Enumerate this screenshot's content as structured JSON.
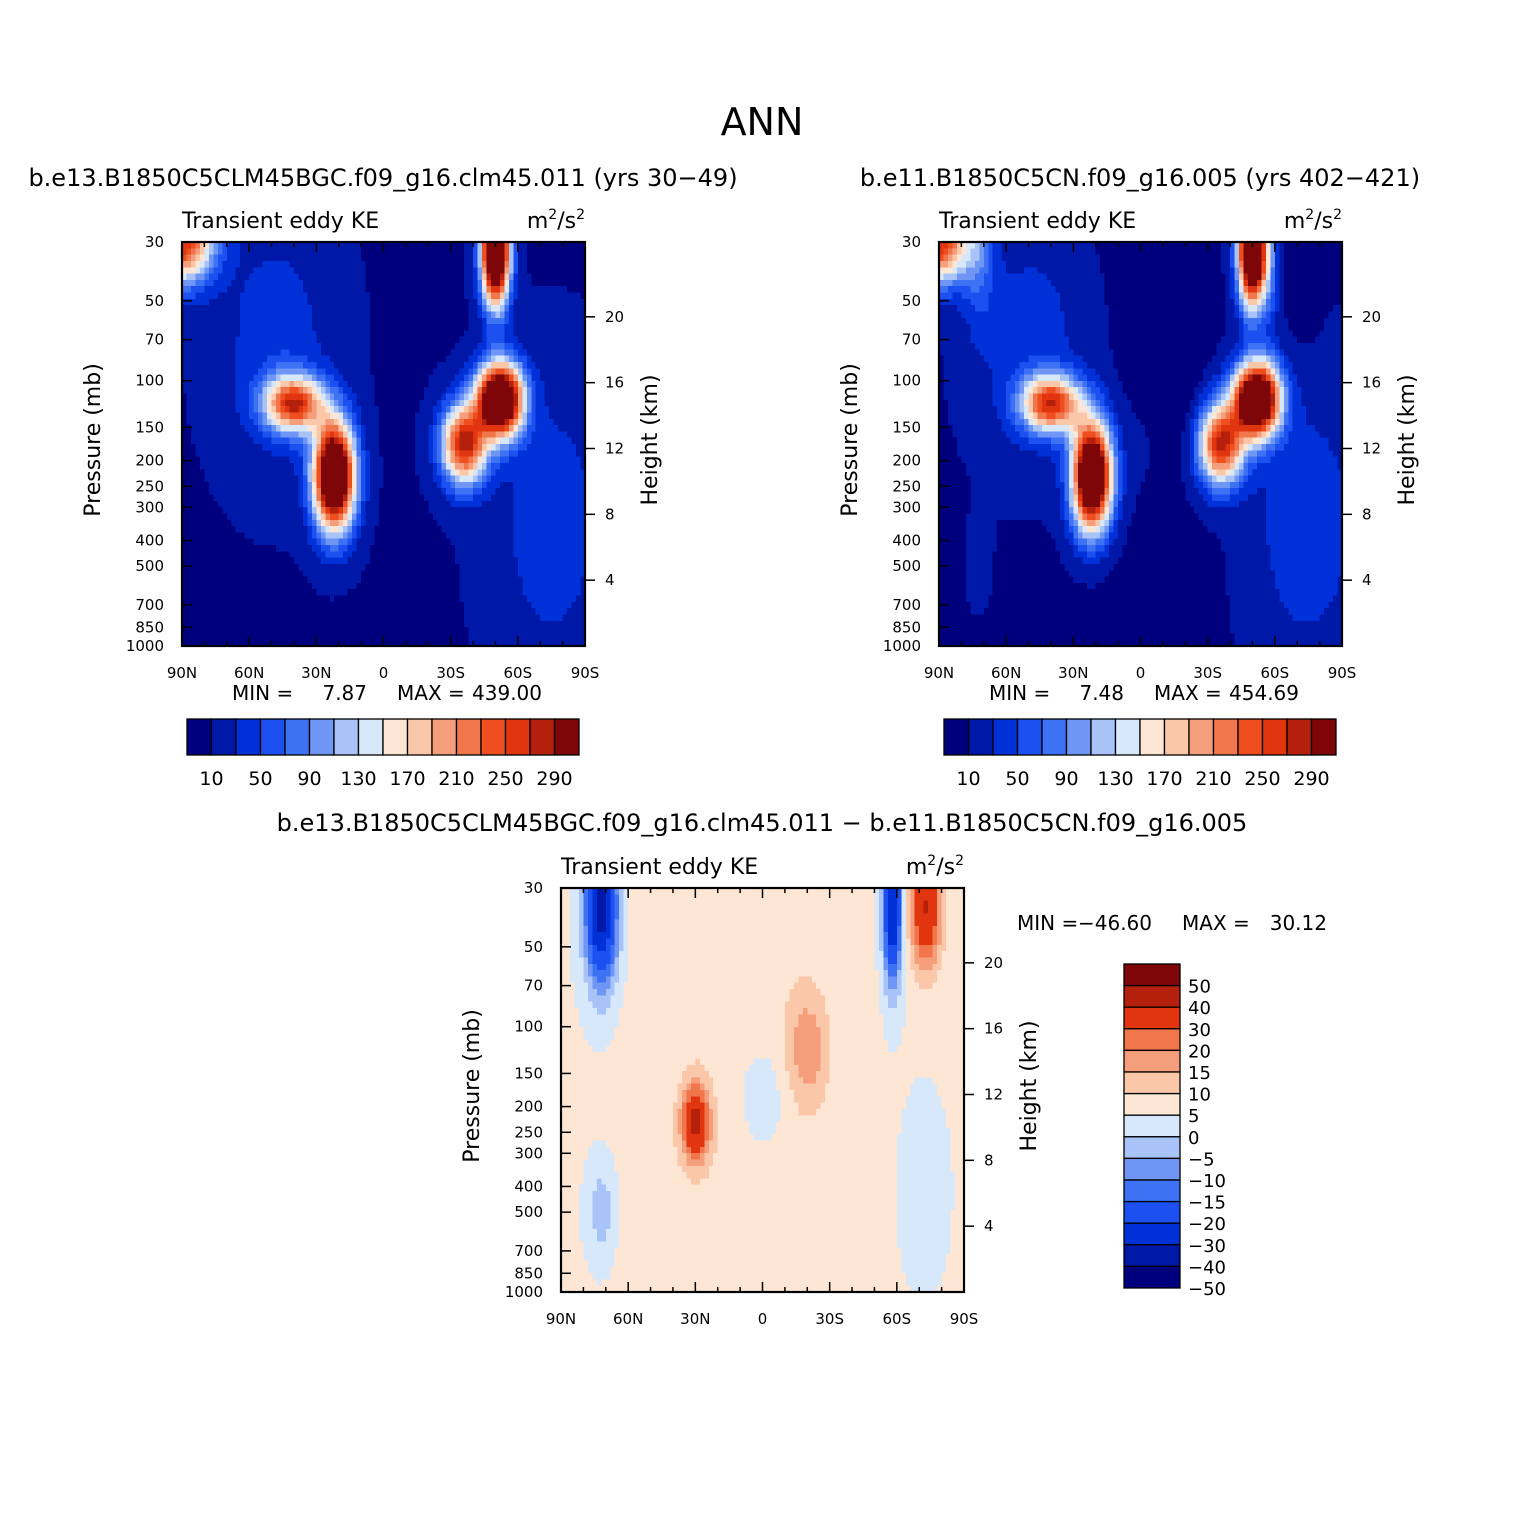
{
  "page_title": "ANN",
  "icons": {},
  "chart_data": [
    {
      "type": "heatmap",
      "id": "panel-a",
      "case_title": "b.e13.B1850C5CLM45BGC.f09_g16.clm45.011 (yrs 30−49)",
      "title": "Transient eddy KE",
      "units_base": "m",
      "units_exp1": "2",
      "units_sep": "/s",
      "units_exp2": "2",
      "ylabel": "Pressure (mb)",
      "y2label": "Height (km)",
      "x_ticks": [
        "90N",
        "60N",
        "30N",
        "0",
        "30S",
        "60S",
        "90S"
      ],
      "x_range": [
        90,
        -90
      ],
      "y_ticks": [
        "30",
        "50",
        "70",
        "100",
        "150",
        "200",
        "250",
        "300",
        "400",
        "500",
        "700",
        "850",
        "1000"
      ],
      "y_range_mb": [
        30,
        1000
      ],
      "y2_ticks": [
        "20",
        "16",
        "12",
        "8",
        "4"
      ],
      "min_label": "MIN =",
      "min_value": "7.87",
      "max_label": "MAX =",
      "max_value": "439.00",
      "min": 7.87,
      "max": 439.0,
      "colorbar": {
        "orientation": "horizontal",
        "colors": [
          "#00007f",
          "#0018a8",
          "#0030d8",
          "#1c50f0",
          "#3e72f4",
          "#7096f5",
          "#a7c3f8",
          "#d8e8fb",
          "#fde6d4",
          "#fbc7a9",
          "#f59e7c",
          "#f2764c",
          "#ef4e1e",
          "#e0350e",
          "#b4200b",
          "#7e0608"
        ],
        "labels": [
          "10",
          "50",
          "90",
          "130",
          "170",
          "210",
          "250",
          "290"
        ],
        "levels": [
          10,
          30,
          50,
          70,
          90,
          110,
          130,
          150,
          170,
          190,
          210,
          230,
          250,
          270,
          290
        ]
      }
    },
    {
      "type": "heatmap",
      "id": "panel-b",
      "case_title": "b.e11.B1850C5CN.f09_g16.005 (yrs 402−421)",
      "title": "Transient eddy KE",
      "units_base": "m",
      "units_exp1": "2",
      "units_sep": "/s",
      "units_exp2": "2",
      "ylabel": "Pressure (mb)",
      "y2label": "Height (km)",
      "x_ticks": [
        "90N",
        "60N",
        "30N",
        "0",
        "30S",
        "60S",
        "90S"
      ],
      "x_range": [
        90,
        -90
      ],
      "y_ticks": [
        "30",
        "50",
        "70",
        "100",
        "150",
        "200",
        "250",
        "300",
        "400",
        "500",
        "700",
        "850",
        "1000"
      ],
      "y_range_mb": [
        30,
        1000
      ],
      "y2_ticks": [
        "20",
        "16",
        "12",
        "8",
        "4"
      ],
      "min_label": "MIN =",
      "min_value": "7.48",
      "max_label": "MAX =",
      "max_value": "454.69",
      "min": 7.48,
      "max": 454.69,
      "colorbar": {
        "orientation": "horizontal",
        "colors": [
          "#00007f",
          "#0018a8",
          "#0030d8",
          "#1c50f0",
          "#3e72f4",
          "#7096f5",
          "#a7c3f8",
          "#d8e8fb",
          "#fde6d4",
          "#fbc7a9",
          "#f59e7c",
          "#f2764c",
          "#ef4e1e",
          "#e0350e",
          "#b4200b",
          "#7e0608"
        ],
        "labels": [
          "10",
          "50",
          "90",
          "130",
          "170",
          "210",
          "250",
          "290"
        ],
        "levels": [
          10,
          30,
          50,
          70,
          90,
          110,
          130,
          150,
          170,
          190,
          210,
          230,
          250,
          270,
          290
        ]
      }
    },
    {
      "type": "heatmap",
      "id": "panel-diff",
      "case_title": "b.e13.B1850C5CLM45BGC.f09_g16.clm45.011 − b.e11.B1850C5CN.f09_g16.005",
      "title": "Transient eddy KE",
      "units_base": "m",
      "units_exp1": "2",
      "units_sep": "/s",
      "units_exp2": "2",
      "ylabel": "Pressure (mb)",
      "y2label": "Height (km)",
      "x_ticks": [
        "90N",
        "60N",
        "30N",
        "0",
        "30S",
        "60S",
        "90S"
      ],
      "x_range": [
        90,
        -90
      ],
      "y_ticks": [
        "30",
        "50",
        "70",
        "100",
        "150",
        "200",
        "250",
        "300",
        "400",
        "500",
        "700",
        "850",
        "1000"
      ],
      "y_range_mb": [
        30,
        1000
      ],
      "y2_ticks": [
        "20",
        "16",
        "12",
        "8",
        "4"
      ],
      "min_label": "MIN =",
      "min_value": "−46.60",
      "max_label": "MAX =",
      "max_value": "30.12",
      "min": -46.6,
      "max": 30.12,
      "colorbar": {
        "orientation": "vertical",
        "colors": [
          "#7e0608",
          "#b4200b",
          "#e0350e",
          "#f2764c",
          "#f59e7c",
          "#fbc7a9",
          "#fde6d4",
          "#d8e8fb",
          "#a7c3f8",
          "#7096f5",
          "#3e72f4",
          "#1c50f0",
          "#0030d8",
          "#0018a8",
          "#00007f"
        ],
        "labels": [
          "50",
          "40",
          "30",
          "20",
          "15",
          "10",
          "5",
          "0",
          "−5",
          "−10",
          "−15",
          "−20",
          "−30",
          "−40",
          "−50"
        ],
        "levels": [
          50,
          40,
          30,
          20,
          15,
          10,
          5,
          0,
          -5,
          -10,
          -15,
          -20,
          -30,
          -40,
          -50
        ]
      }
    }
  ]
}
